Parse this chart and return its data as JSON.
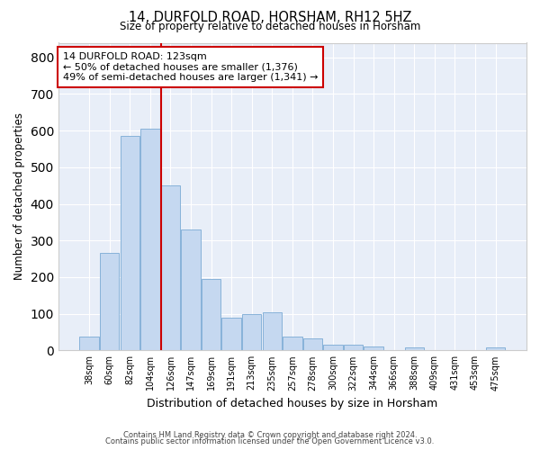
{
  "title": "14, DURFOLD ROAD, HORSHAM, RH12 5HZ",
  "subtitle": "Size of property relative to detached houses in Horsham",
  "xlabel": "Distribution of detached houses by size in Horsham",
  "ylabel": "Number of detached properties",
  "categories": [
    "38sqm",
    "60sqm",
    "82sqm",
    "104sqm",
    "126sqm",
    "147sqm",
    "169sqm",
    "191sqm",
    "213sqm",
    "235sqm",
    "257sqm",
    "278sqm",
    "300sqm",
    "322sqm",
    "344sqm",
    "366sqm",
    "388sqm",
    "409sqm",
    "431sqm",
    "453sqm",
    "475sqm"
  ],
  "values": [
    38,
    265,
    585,
    605,
    450,
    330,
    195,
    90,
    100,
    105,
    38,
    33,
    15,
    15,
    10,
    0,
    7,
    0,
    0,
    0,
    7
  ],
  "bar_color": "#c5d8f0",
  "bar_edge_color": "#7aaad4",
  "vline_color": "#cc0000",
  "annotation_text": "14 DURFOLD ROAD: 123sqm\n← 50% of detached houses are smaller (1,376)\n49% of semi-detached houses are larger (1,341) →",
  "annotation_box_color": "#cc0000",
  "ylim": [
    0,
    840
  ],
  "yticks": [
    0,
    100,
    200,
    300,
    400,
    500,
    600,
    700,
    800
  ],
  "background_color": "#e8eef8",
  "grid_color": "#ffffff",
  "footer1": "Contains HM Land Registry data © Crown copyright and database right 2024.",
  "footer2": "Contains public sector information licensed under the Open Government Licence v3.0."
}
